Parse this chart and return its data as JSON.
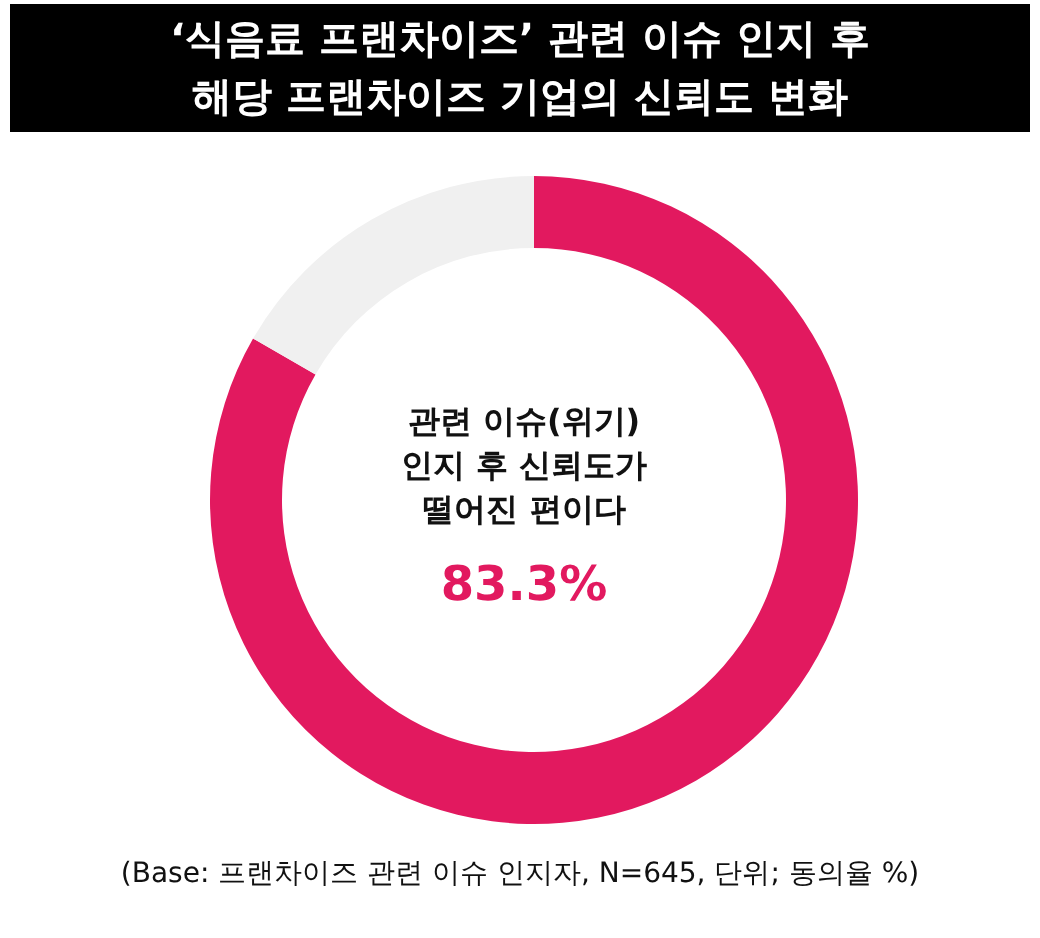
{
  "chart_data": {
    "type": "donut",
    "title": "‘식음료 프랜차이즈’ 관련 이슈 인지 후\n해당 프랜차이즈 기업의 신뢰도 변화",
    "categories": [
      "관련 이슈(위기)\n인지 후 신뢰도가\n떨어진 편이다",
      null
    ],
    "values": [
      83.3,
      16.7
    ],
    "colors": [
      "#e2195f",
      "#f0f0f0"
    ],
    "value_labels": [
      "83.3%",
      null
    ],
    "annotations": [
      "(Base: 프랜차이즈 관련 이슈 인지자, N=645, 단위; 동의율 %)"
    ]
  }
}
